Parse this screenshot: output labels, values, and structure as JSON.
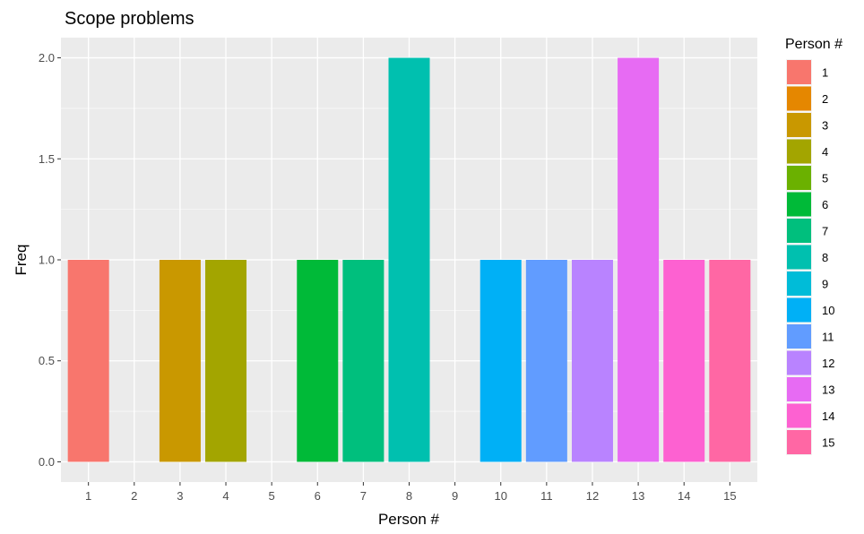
{
  "chart_data": {
    "type": "bar",
    "title": "Scope problems",
    "xlabel": "Person #",
    "ylabel": "Freq",
    "categories": [
      "1",
      "2",
      "3",
      "4",
      "5",
      "6",
      "7",
      "8",
      "9",
      "10",
      "11",
      "12",
      "13",
      "14",
      "15"
    ],
    "values": [
      1,
      0,
      1,
      1,
      0,
      1,
      1,
      2,
      0,
      1,
      1,
      1,
      2,
      1,
      1
    ],
    "ylim": [
      -0.1,
      2.1
    ],
    "yticks": [
      "0.0",
      "0.5",
      "1.0",
      "1.5",
      "2.0"
    ],
    "ytick_values": [
      0,
      0.5,
      1.0,
      1.5,
      2.0
    ],
    "grid": true,
    "legend": {
      "title": "Person #",
      "placement": "right",
      "entries": [
        "1",
        "2",
        "3",
        "4",
        "5",
        "6",
        "7",
        "8",
        "9",
        "10",
        "11",
        "12",
        "13",
        "14",
        "15"
      ]
    },
    "colors": [
      "#F8766D",
      "#E58700",
      "#C99800",
      "#A3A500",
      "#6BB100",
      "#00BA38",
      "#00BF7D",
      "#00C0AF",
      "#00BCD8",
      "#00B0F6",
      "#619CFF",
      "#B983FF",
      "#E76BF3",
      "#FD61D1",
      "#FF67A4"
    ],
    "panel_background": "#EBEBEB",
    "grid_color": "#FFFFFF"
  }
}
